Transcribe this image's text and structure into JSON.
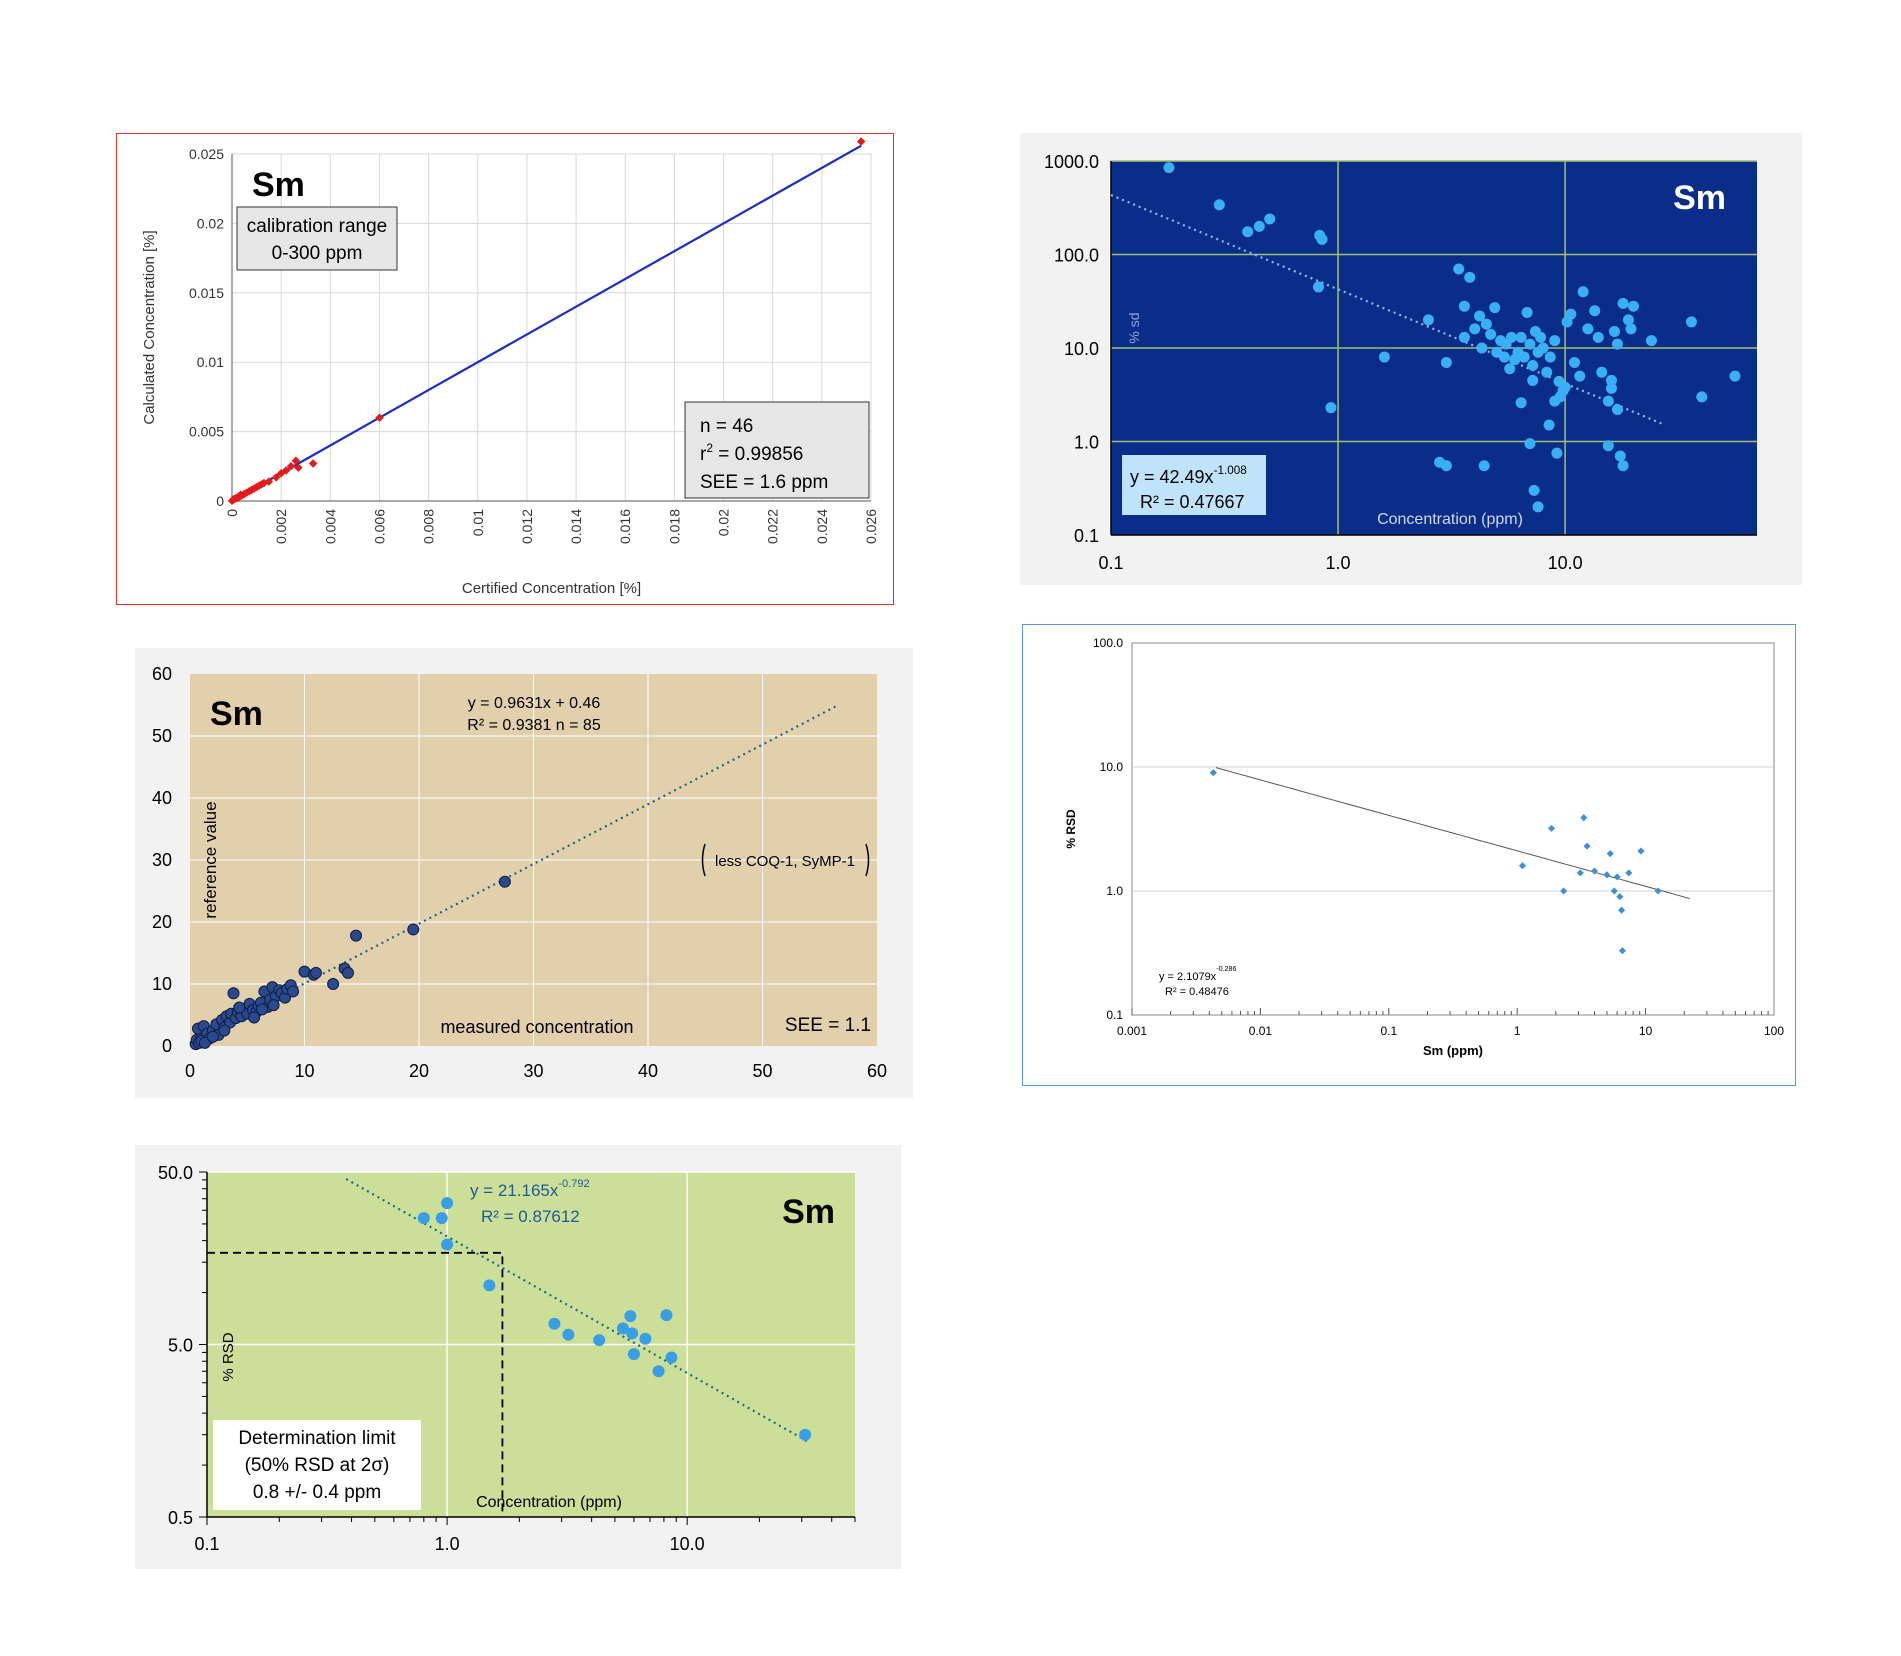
{
  "chart_data": [
    {
      "id": "calibration",
      "type": "scatter",
      "title": "Sm",
      "xlabel": "Certified Concentration [%]",
      "ylabel": "Calculated Concentration [%]",
      "xlim": [
        0,
        0.026
      ],
      "ylim": [
        0,
        0.025
      ],
      "x_ticks": [
        "0",
        "0.002",
        "0.004",
        "0.006",
        "0.008",
        "0.01",
        "0.012",
        "0.014",
        "0.016",
        "0.018",
        "0.02",
        "0.022",
        "0.024",
        "0.026"
      ],
      "y_ticks": [
        "0",
        "0.005",
        "0.01",
        "0.015",
        "0.02",
        "0.025"
      ],
      "grid": true,
      "calibration_box": [
        "calibration range",
        "0-300 ppm"
      ],
      "stats_box": {
        "n": "n = 46",
        "r2": "= 0.99856",
        "see": "SEE = 1.6 ppm"
      },
      "fit_line": [
        [
          0,
          0
        ],
        [
          0.0256,
          0.0256
        ]
      ],
      "points": [
        [
          0.0,
          2e-05
        ],
        [
          5e-05,
          0.0001
        ],
        [
          0.0001,
          0.00015
        ],
        [
          0.00015,
          0.0002
        ],
        [
          0.0002,
          0.0002
        ],
        [
          0.00025,
          0.0003
        ],
        [
          0.0003,
          0.0003
        ],
        [
          0.00035,
          0.00045
        ],
        [
          0.0004,
          0.0004
        ],
        [
          0.0005,
          0.0005
        ],
        [
          0.0006,
          0.0006
        ],
        [
          0.0007,
          0.0007
        ],
        [
          0.0008,
          0.0008
        ],
        [
          0.0009,
          0.0009
        ],
        [
          0.001,
          0.001
        ],
        [
          0.0011,
          0.0011
        ],
        [
          0.0012,
          0.0012
        ],
        [
          0.0013,
          0.0013
        ],
        [
          0.0015,
          0.0014
        ],
        [
          0.0018,
          0.0017
        ],
        [
          0.002,
          0.002
        ],
        [
          0.0022,
          0.0022
        ],
        [
          0.0024,
          0.0025
        ],
        [
          0.0027,
          0.0024
        ],
        [
          0.0026,
          0.0029
        ],
        [
          0.0033,
          0.0027
        ],
        [
          0.006,
          0.006
        ],
        [
          0.0256,
          0.0259
        ]
      ]
    },
    {
      "id": "rsd-blue",
      "type": "scatter",
      "title": "Sm",
      "xlabel": "Concentration (ppm)",
      "ylabel": "% sd",
      "xscale": "log",
      "yscale": "log",
      "xlim": [
        0.1,
        70
      ],
      "ylim": [
        0.1,
        1000
      ],
      "x_ticks": [
        "0.1",
        "1.0",
        "10.0"
      ],
      "y_ticks": [
        "1000.0",
        "100.0",
        "10.0",
        "1.0",
        "0.1"
      ],
      "equation": {
        "base": "y = 42.49x",
        "exp": "-1.008",
        "r2": "R² = 0.47667"
      },
      "trendline": {
        "a": 42.49,
        "b": -1.008,
        "x_range": [
          0.1,
          27
        ]
      },
      "points": [
        [
          0.18,
          850
        ],
        [
          0.4,
          175
        ],
        [
          0.45,
          200
        ],
        [
          0.5,
          240
        ],
        [
          0.3,
          340
        ],
        [
          0.83,
          160
        ],
        [
          0.85,
          145
        ],
        [
          0.82,
          45
        ],
        [
          0.93,
          2.3
        ],
        [
          1.6,
          8
        ],
        [
          2.5,
          20
        ],
        [
          3,
          7
        ],
        [
          3.4,
          70
        ],
        [
          3.6,
          13
        ],
        [
          3.8,
          57
        ],
        [
          3.6,
          28
        ],
        [
          4,
          16
        ],
        [
          4.2,
          22
        ],
        [
          4.3,
          10
        ],
        [
          4.5,
          18
        ],
        [
          4.7,
          14
        ],
        [
          4.9,
          27
        ],
        [
          5,
          9
        ],
        [
          5.2,
          12
        ],
        [
          5.4,
          8
        ],
        [
          5.5,
          11
        ],
        [
          5.7,
          6
        ],
        [
          5.8,
          13
        ],
        [
          6,
          7.5
        ],
        [
          6.2,
          9
        ],
        [
          6.4,
          13
        ],
        [
          6.6,
          8
        ],
        [
          6.8,
          24
        ],
        [
          7,
          11
        ],
        [
          7.2,
          6.5
        ],
        [
          7.4,
          15
        ],
        [
          7.6,
          9
        ],
        [
          7.8,
          13
        ],
        [
          8,
          10
        ],
        [
          8.3,
          5.5
        ],
        [
          8.6,
          8
        ],
        [
          9,
          12
        ],
        [
          9.4,
          4.4
        ],
        [
          9.8,
          3.5
        ],
        [
          10.2,
          19
        ],
        [
          10.6,
          23
        ],
        [
          11,
          7
        ],
        [
          11.6,
          5
        ],
        [
          12,
          40
        ],
        [
          12.6,
          16
        ],
        [
          8.5,
          1.5
        ],
        [
          9,
          2.7
        ],
        [
          9.5,
          3
        ],
        [
          10,
          3.8
        ],
        [
          13.5,
          25
        ],
        [
          14,
          13
        ],
        [
          14.5,
          5.5
        ],
        [
          15.5,
          2.7
        ],
        [
          16,
          3.7
        ],
        [
          16,
          4.5
        ],
        [
          16.5,
          15
        ],
        [
          17,
          11
        ],
        [
          17,
          2.2
        ],
        [
          17.5,
          0.7
        ],
        [
          18,
          30
        ],
        [
          19,
          20
        ],
        [
          19.5,
          16
        ],
        [
          20,
          28
        ],
        [
          24,
          12
        ],
        [
          36,
          19
        ],
        [
          40,
          3
        ],
        [
          56,
          5
        ],
        [
          2.8,
          0.6
        ],
        [
          3,
          0.55
        ],
        [
          4.4,
          0.55
        ],
        [
          7,
          0.95
        ],
        [
          7.3,
          0.3
        ],
        [
          7.6,
          0.2
        ],
        [
          15.5,
          0.9
        ],
        [
          18,
          0.55
        ],
        [
          6.4,
          2.6
        ],
        [
          7.2,
          4.5
        ],
        [
          9.2,
          0.75
        ]
      ]
    },
    {
      "id": "reference",
      "type": "scatter",
      "title": "Sm",
      "xlabel": "measured concentration",
      "ylabel": "reference value",
      "xlim": [
        0,
        60
      ],
      "ylim": [
        0,
        60
      ],
      "x_ticks": [
        "0",
        "10",
        "20",
        "30",
        "40",
        "50",
        "60"
      ],
      "y_ticks": [
        "0",
        "10",
        "20",
        "30",
        "40",
        "50",
        "60"
      ],
      "equation": "y = 0.9631x + 0.46",
      "r2_n": "R² = 0.9381   n = 85",
      "annotation": "less COQ-1, SyMP-1",
      "see": "SEE = 1.1",
      "trendline": {
        "slope": 0.9631,
        "intercept": 0.46,
        "x_range": [
          0,
          56.5
        ]
      },
      "points": [
        [
          0.5,
          0.3
        ],
        [
          0.6,
          1.0
        ],
        [
          0.8,
          0.5
        ],
        [
          1.0,
          1.5
        ],
        [
          0.7,
          2.8
        ],
        [
          1.2,
          3.2
        ],
        [
          1.5,
          2.0
        ],
        [
          1.7,
          1.2
        ],
        [
          2.0,
          2.5
        ],
        [
          2.3,
          3.5
        ],
        [
          2.5,
          1.8
        ],
        [
          2.8,
          4.2
        ],
        [
          3.0,
          3.0
        ],
        [
          3.2,
          4.8
        ],
        [
          3.5,
          3.8
        ],
        [
          3.6,
          5.2
        ],
        [
          3.8,
          8.5
        ],
        [
          4.0,
          4.5
        ],
        [
          4.2,
          5.5
        ],
        [
          4.5,
          4.8
        ],
        [
          4.8,
          6.0
        ],
        [
          5.0,
          5.2
        ],
        [
          5.2,
          6.8
        ],
        [
          5.5,
          5.8
        ],
        [
          5.8,
          5.5
        ],
        [
          6.0,
          6.5
        ],
        [
          6.2,
          7.0
        ],
        [
          6.5,
          8.8
        ],
        [
          6.8,
          6.3
        ],
        [
          7.0,
          7.5
        ],
        [
          7.2,
          9.5
        ],
        [
          7.5,
          8.0
        ],
        [
          7.8,
          9.0
        ],
        [
          8.0,
          8.5
        ],
        [
          8.3,
          7.8
        ],
        [
          8.5,
          9.2
        ],
        [
          8.8,
          9.8
        ],
        [
          9.0,
          8.8
        ],
        [
          10.0,
          12.0
        ],
        [
          10.8,
          11.5
        ],
        [
          11.0,
          11.8
        ],
        [
          12.5,
          10.0
        ],
        [
          13.5,
          12.5
        ],
        [
          13.8,
          11.8
        ],
        [
          14.5,
          17.8
        ],
        [
          19.5,
          18.8
        ],
        [
          27.5,
          26.5
        ],
        [
          1.0,
          0.8
        ],
        [
          1.3,
          0.5
        ],
        [
          2.0,
          1.5
        ],
        [
          3.0,
          2.5
        ],
        [
          4.3,
          6.2
        ],
        [
          5.6,
          4.6
        ],
        [
          6.3,
          5.9
        ],
        [
          7.3,
          6.6
        ]
      ]
    },
    {
      "id": "rsd-white",
      "type": "scatter",
      "title": "",
      "xlabel": "Sm (ppm)",
      "ylabel": "% RSD",
      "xscale": "log",
      "yscale": "log",
      "xlim": [
        0.001,
        100
      ],
      "ylim": [
        0.1,
        100
      ],
      "x_ticks": [
        "0.001",
        "0.01",
        "0.1",
        "1",
        "10",
        "100"
      ],
      "y_ticks": [
        "100.0",
        "10.0",
        "1.0",
        "0.1"
      ],
      "equation": {
        "base": "y = 2.1079x",
        "exp": "-0.286",
        "r2": "R² = 0.48476"
      },
      "trendline": {
        "a": 2.1079,
        "b": -0.286,
        "x_range": [
          0.0045,
          22
        ]
      },
      "points": [
        [
          0.0043,
          9.0
        ],
        [
          1.1,
          1.6
        ],
        [
          1.85,
          3.2
        ],
        [
          2.3,
          1.0
        ],
        [
          3.1,
          1.4
        ],
        [
          3.3,
          3.9
        ],
        [
          3.5,
          2.3
        ],
        [
          4.0,
          1.45
        ],
        [
          5.0,
          1.35
        ],
        [
          5.3,
          2.0
        ],
        [
          5.7,
          1.0
        ],
        [
          6.0,
          1.3
        ],
        [
          6.3,
          0.9
        ],
        [
          6.5,
          0.7
        ],
        [
          6.6,
          0.33
        ],
        [
          7.4,
          1.4
        ],
        [
          9.2,
          2.1
        ],
        [
          12.5,
          1.0
        ]
      ]
    },
    {
      "id": "determination",
      "type": "scatter",
      "title": "Sm",
      "xlabel": "Concentration (ppm)",
      "ylabel": "% RSD",
      "xscale": "log",
      "yscale": "log",
      "xlim": [
        0.1,
        50
      ],
      "ylim": [
        0.5,
        50
      ],
      "x_ticks": [
        "0.1",
        "1.0",
        "10.0"
      ],
      "y_ticks": [
        "50.0",
        "5.0",
        "0.5"
      ],
      "equation": {
        "base": "y = 21.165x",
        "exp": "-0.792",
        "r2": "R² = 0.87612"
      },
      "trendline": {
        "a": 21.165,
        "b": -0.792,
        "x_range": [
          0.38,
          32
        ]
      },
      "limit_box": [
        "Determination limit",
        "(50% RSD at 2σ)",
        "0.8 +/- 0.4 ppm"
      ],
      "limit_line": {
        "x": 1.7,
        "y": 17
      },
      "points": [
        [
          0.8,
          27
        ],
        [
          0.95,
          27
        ],
        [
          1.0,
          33
        ],
        [
          1.0,
          19
        ],
        [
          1.5,
          11
        ],
        [
          2.8,
          6.6
        ],
        [
          3.2,
          5.7
        ],
        [
          4.3,
          5.3
        ],
        [
          5.4,
          6.2
        ],
        [
          5.8,
          7.3
        ],
        [
          5.9,
          5.8
        ],
        [
          6.0,
          4.4
        ],
        [
          6.7,
          5.4
        ],
        [
          7.6,
          3.5
        ],
        [
          8.2,
          7.4
        ],
        [
          8.6,
          4.2
        ],
        [
          31,
          1.5
        ]
      ]
    }
  ]
}
